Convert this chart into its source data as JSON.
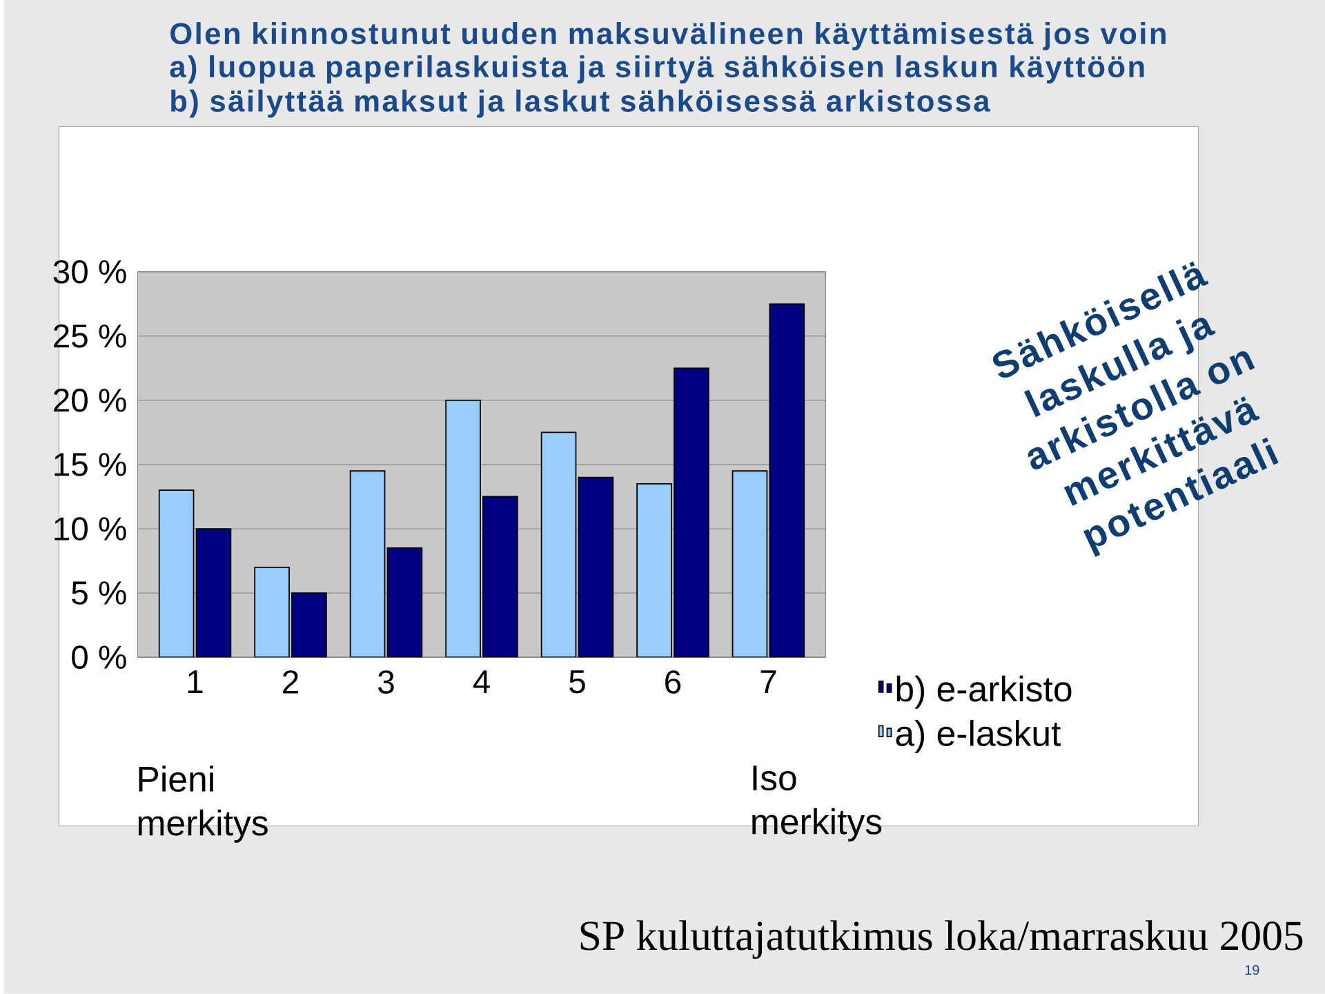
{
  "chart_data": {
    "type": "bar",
    "title": "Olen kiinnostunut uuden maksuvälineen käyttämisestä jos voin",
    "subtitle": "a) luopua paperilaskuista ja siirtyä sähköisen laskun käyttöön b) säilyttää maksut ja laskut sähköisessä arkistossa",
    "categories": [
      "1",
      "2",
      "3",
      "4",
      "5",
      "6",
      "7"
    ],
    "series": [
      {
        "name": "a) e-laskut",
        "color": "#99ccff",
        "values": [
          13,
          7,
          14.5,
          20,
          17.5,
          13.5,
          14.5
        ]
      },
      {
        "name": "b) e-arkisto",
        "color": "#000080",
        "values": [
          10,
          5,
          8.5,
          12.5,
          14,
          22.5,
          27.5
        ]
      }
    ],
    "ylim": [
      0,
      30
    ],
    "yticks": [
      {
        "value": 0,
        "label": "0 %"
      },
      {
        "value": 5,
        "label": "5 %"
      },
      {
        "value": 10,
        "label": "10 %"
      },
      {
        "value": 15,
        "label": "15 %"
      },
      {
        "value": 20,
        "label": "20 %"
      },
      {
        "value": 25,
        "label": "25 %"
      },
      {
        "value": 30,
        "label": "30 %"
      }
    ],
    "grid": "y",
    "legend": "bottom right",
    "annotations": [
      "Pieni merkitys",
      "Iso merkitys",
      "Sähköisellä laskulla ja arkistolla on merkittävä potentiaali",
      "SP kuluttajatutkimus loka/marraskuu 2005",
      "19"
    ]
  }
}
